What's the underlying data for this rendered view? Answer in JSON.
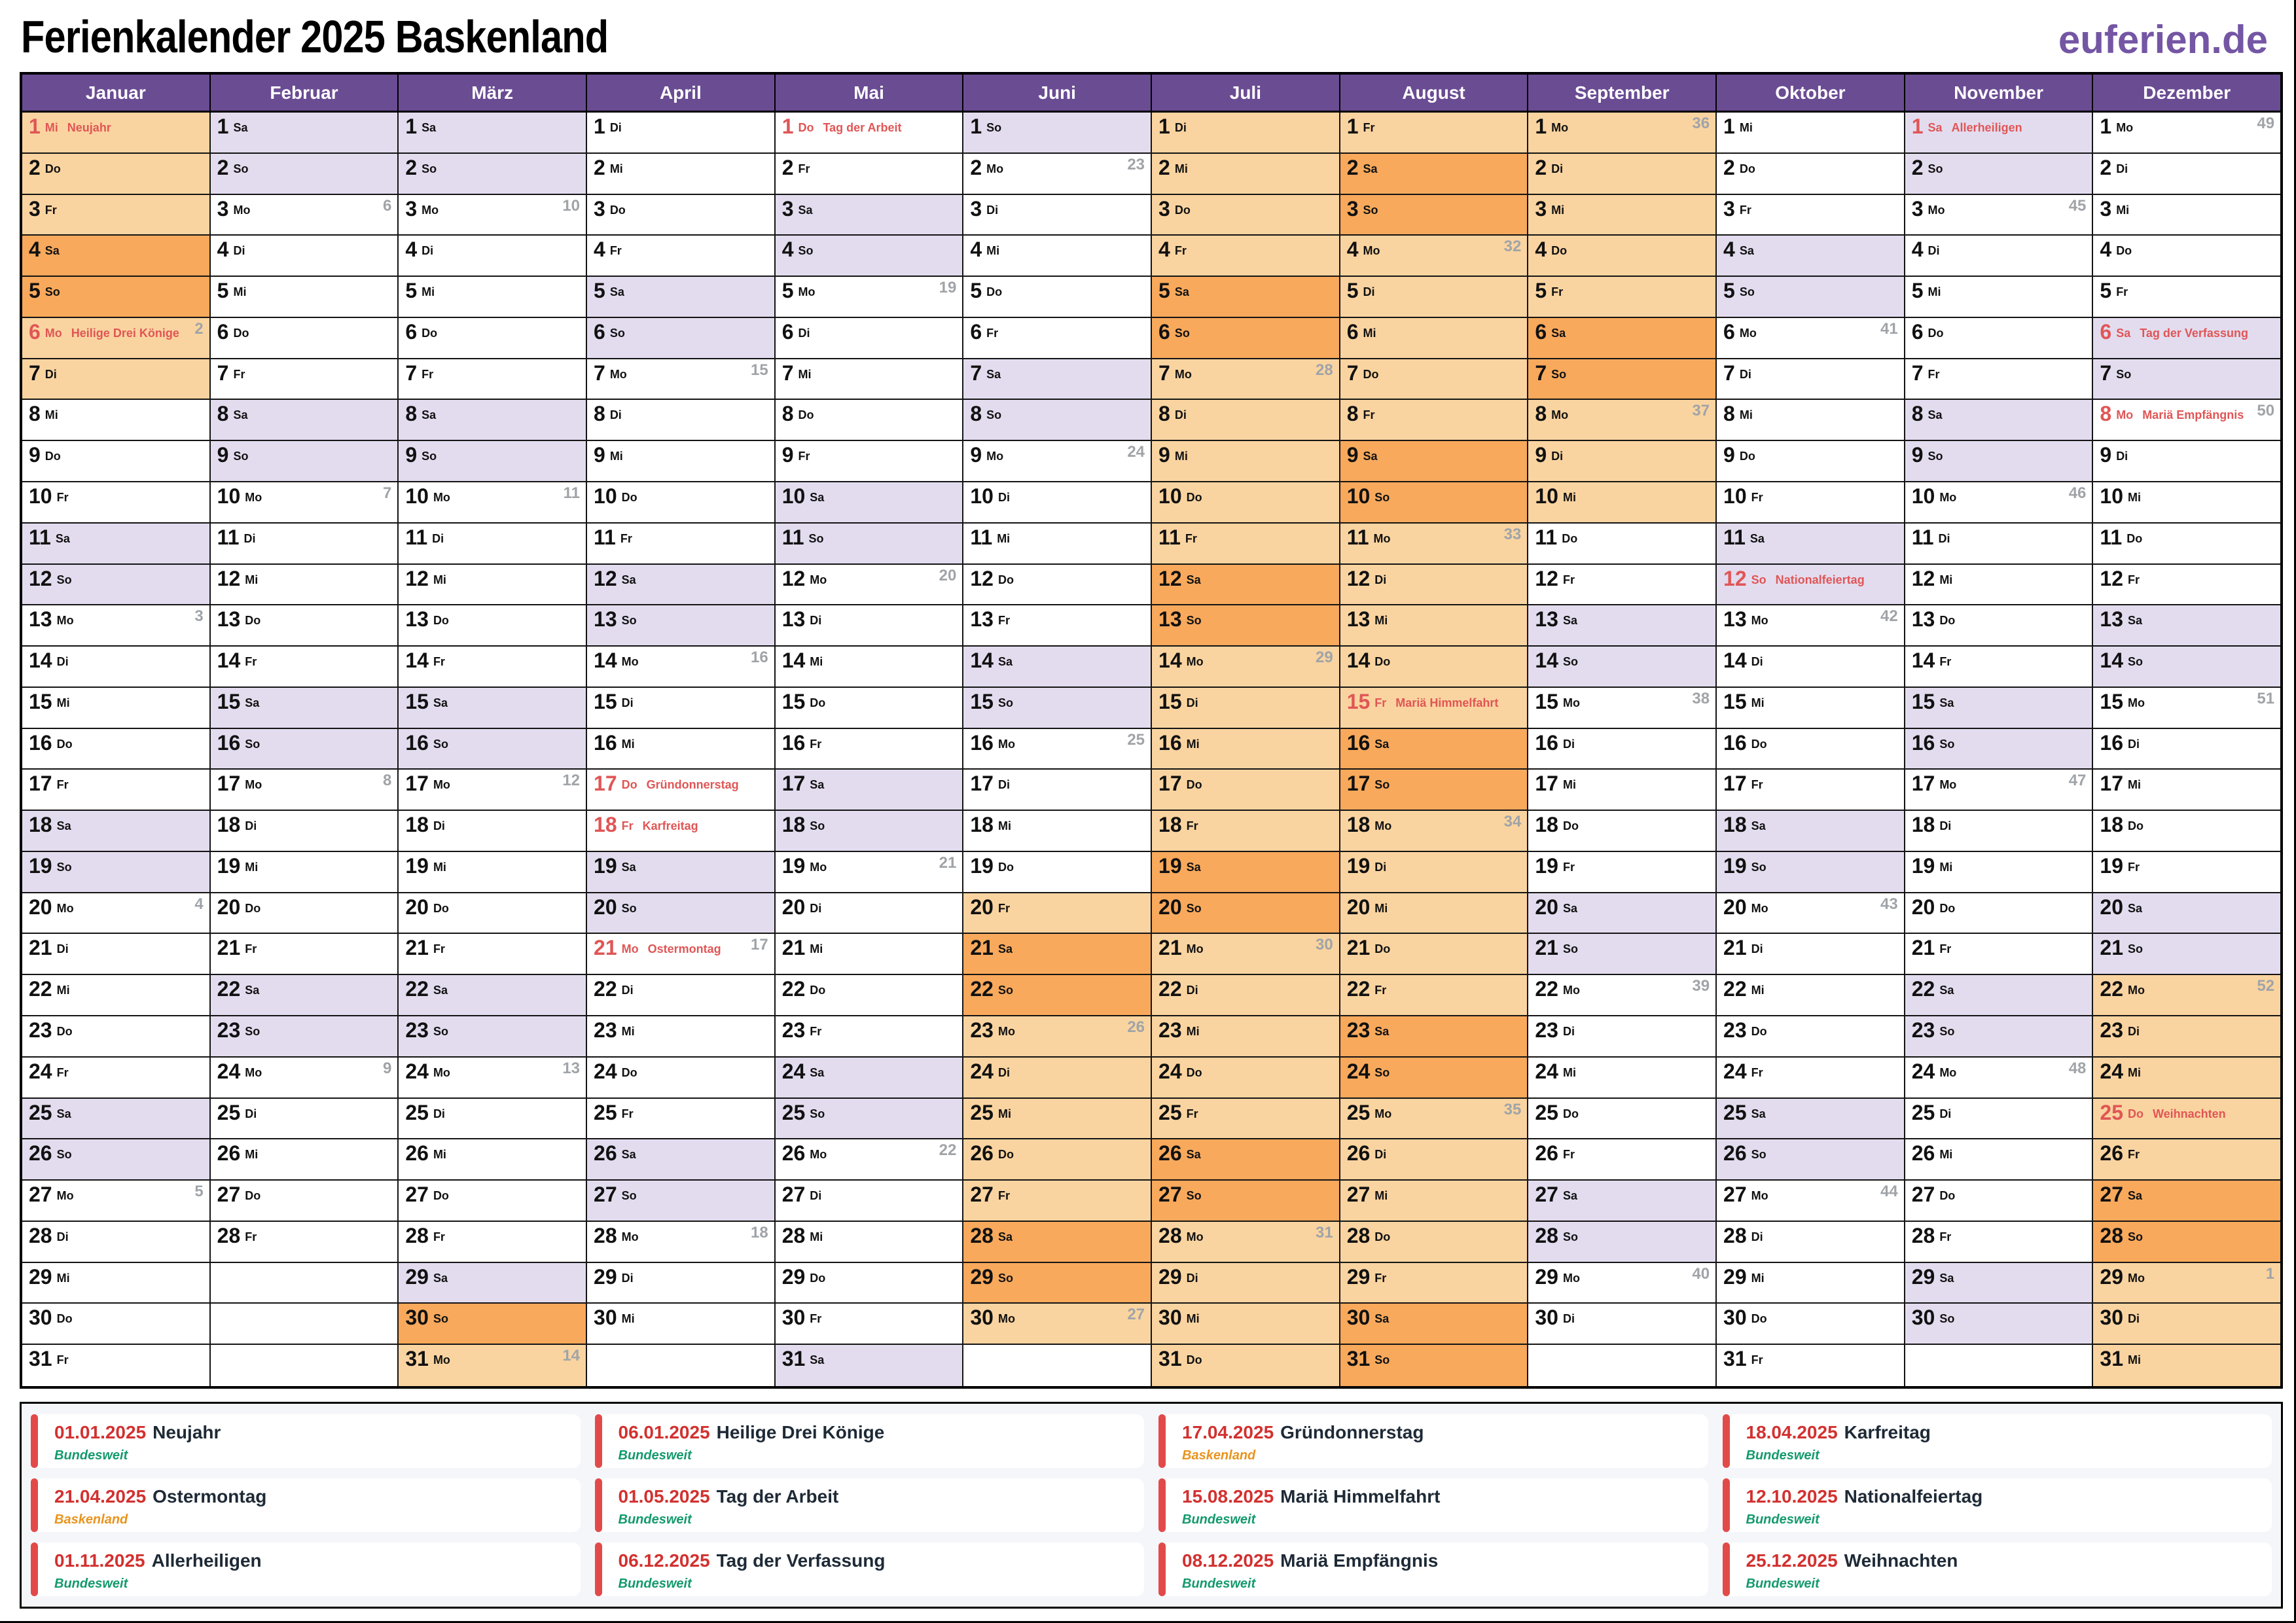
{
  "page": {
    "title": "Ferienkalender 2025 Baskenland",
    "logo": "euferien.de"
  },
  "weekdays": [
    "Mo",
    "Di",
    "Mi",
    "Do",
    "Fr",
    "Sa",
    "So"
  ],
  "colors": {
    "header_purple": "#6A4C93",
    "logo_purple": "#7456A4",
    "weekend_lavender": "#E3DCEF",
    "ferien_peach": "#FAD4A0",
    "ferien_weekend_orange": "#F8A95C",
    "holiday_red": "#E05656",
    "legend_date_red": "#D23130",
    "legend_accent_red": "#E24A4A",
    "scope_green": "#149A6C",
    "scope_orange": "#E9941F",
    "week_number_gray": "#A0A4A8"
  },
  "months": [
    {
      "name": "Januar",
      "days": 31,
      "start": 2,
      "ferien": [
        [
          1,
          7
        ]
      ],
      "holidays": {
        "1": "Neujahr",
        "6": "Heilige Drei Könige"
      },
      "weeks": {
        "6": 2,
        "13": 3,
        "20": 4,
        "27": 5
      }
    },
    {
      "name": "Februar",
      "days": 28,
      "start": 5,
      "ferien": [],
      "holidays": {},
      "weeks": {
        "3": 6,
        "10": 7,
        "17": 8,
        "24": 9
      }
    },
    {
      "name": "März",
      "days": 31,
      "start": 5,
      "ferien": [
        [
          30,
          31
        ]
      ],
      "holidays": {},
      "weeks": {
        "3": 10,
        "10": 11,
        "17": 12,
        "24": 13,
        "31": 14
      }
    },
    {
      "name": "April",
      "days": 30,
      "start": 1,
      "ferien": [],
      "holidays": {
        "17": "Gründonnerstag",
        "18": "Karfreitag",
        "21": "Ostermontag"
      },
      "weeks": {
        "7": 15,
        "14": 16,
        "21": 17,
        "28": 18
      }
    },
    {
      "name": "Mai",
      "days": 31,
      "start": 3,
      "ferien": [],
      "holidays": {
        "1": "Tag der Arbeit"
      },
      "weeks": {
        "5": 19,
        "12": 20,
        "19": 21,
        "26": 22
      }
    },
    {
      "name": "Juni",
      "days": 30,
      "start": 6,
      "ferien": [
        [
          20,
          30
        ]
      ],
      "holidays": {},
      "weeks": {
        "2": 23,
        "9": 24,
        "16": 25,
        "23": 26,
        "30": 27
      }
    },
    {
      "name": "Juli",
      "days": 31,
      "start": 1,
      "ferien": [
        [
          1,
          31
        ]
      ],
      "holidays": {},
      "weeks": {
        "7": 28,
        "14": 29,
        "21": 30,
        "28": 31
      }
    },
    {
      "name": "August",
      "days": 31,
      "start": 4,
      "ferien": [
        [
          1,
          31
        ]
      ],
      "holidays": {
        "15": "Mariä Himmelfahrt"
      },
      "weeks": {
        "4": 32,
        "11": 33,
        "18": 34,
        "25": 35
      }
    },
    {
      "name": "September",
      "days": 30,
      "start": 0,
      "ferien": [
        [
          1,
          10
        ]
      ],
      "holidays": {},
      "weeks": {
        "1": 36,
        "8": 37,
        "15": 38,
        "22": 39,
        "29": 40
      }
    },
    {
      "name": "Oktober",
      "days": 31,
      "start": 2,
      "ferien": [],
      "holidays": {
        "12": "Nationalfeiertag"
      },
      "weeks": {
        "6": 41,
        "13": 42,
        "20": 43,
        "27": 44
      }
    },
    {
      "name": "November",
      "days": 30,
      "start": 5,
      "ferien": [],
      "holidays": {
        "1": "Allerheiligen"
      },
      "weeks": {
        "3": 45,
        "10": 46,
        "17": 47,
        "24": 48
      }
    },
    {
      "name": "Dezember",
      "days": 31,
      "start": 0,
      "ferien": [
        [
          22,
          31
        ]
      ],
      "holidays": {
        "6": "Tag der Verfassung",
        "8": "Mariä Empfängnis",
        "25": "Weihnachten"
      },
      "weeks": {
        "1": 49,
        "8": 50,
        "15": 51,
        "22": 52,
        "29": 1
      }
    }
  ],
  "legend": {
    "items": [
      {
        "date": "01.01.2025",
        "name": "Neujahr",
        "scope": "Bundesweit",
        "scope_color": "green"
      },
      {
        "date": "06.01.2025",
        "name": "Heilige Drei Könige",
        "scope": "Bundesweit",
        "scope_color": "green"
      },
      {
        "date": "17.04.2025",
        "name": "Gründonnerstag",
        "scope": "Baskenland",
        "scope_color": "orange"
      },
      {
        "date": "18.04.2025",
        "name": "Karfreitag",
        "scope": "Bundesweit",
        "scope_color": "green"
      },
      {
        "date": "21.04.2025",
        "name": "Ostermontag",
        "scope": "Baskenland",
        "scope_color": "orange"
      },
      {
        "date": "01.05.2025",
        "name": "Tag der Arbeit",
        "scope": "Bundesweit",
        "scope_color": "green"
      },
      {
        "date": "15.08.2025",
        "name": "Mariä Himmelfahrt",
        "scope": "Bundesweit",
        "scope_color": "green"
      },
      {
        "date": "12.10.2025",
        "name": "Nationalfeiertag",
        "scope": "Bundesweit",
        "scope_color": "green"
      },
      {
        "date": "01.11.2025",
        "name": "Allerheiligen",
        "scope": "Bundesweit",
        "scope_color": "green"
      },
      {
        "date": "06.12.2025",
        "name": "Tag der Verfassung",
        "scope": "Bundesweit",
        "scope_color": "green"
      },
      {
        "date": "08.12.2025",
        "name": "Mariä Empfängnis",
        "scope": "Bundesweit",
        "scope_color": "green"
      },
      {
        "date": "25.12.2025",
        "name": "Weihnachten",
        "scope": "Bundesweit",
        "scope_color": "green"
      }
    ]
  }
}
